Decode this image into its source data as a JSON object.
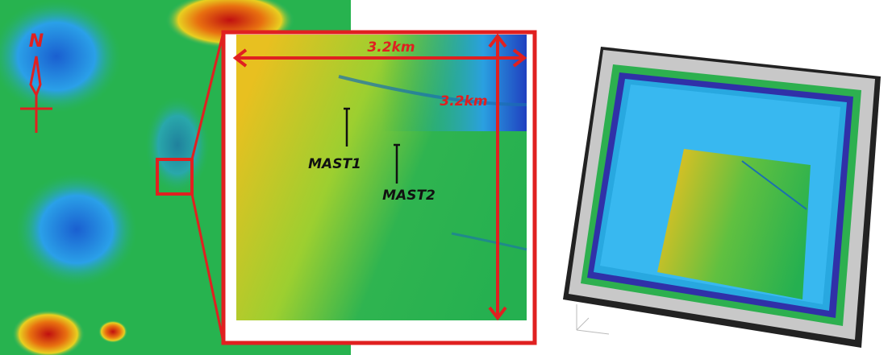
{
  "labels": {
    "north": "N",
    "width": "3.2km",
    "height": "3.2km",
    "mast1": "MAST1",
    "mast2": "MAST2"
  }
}
